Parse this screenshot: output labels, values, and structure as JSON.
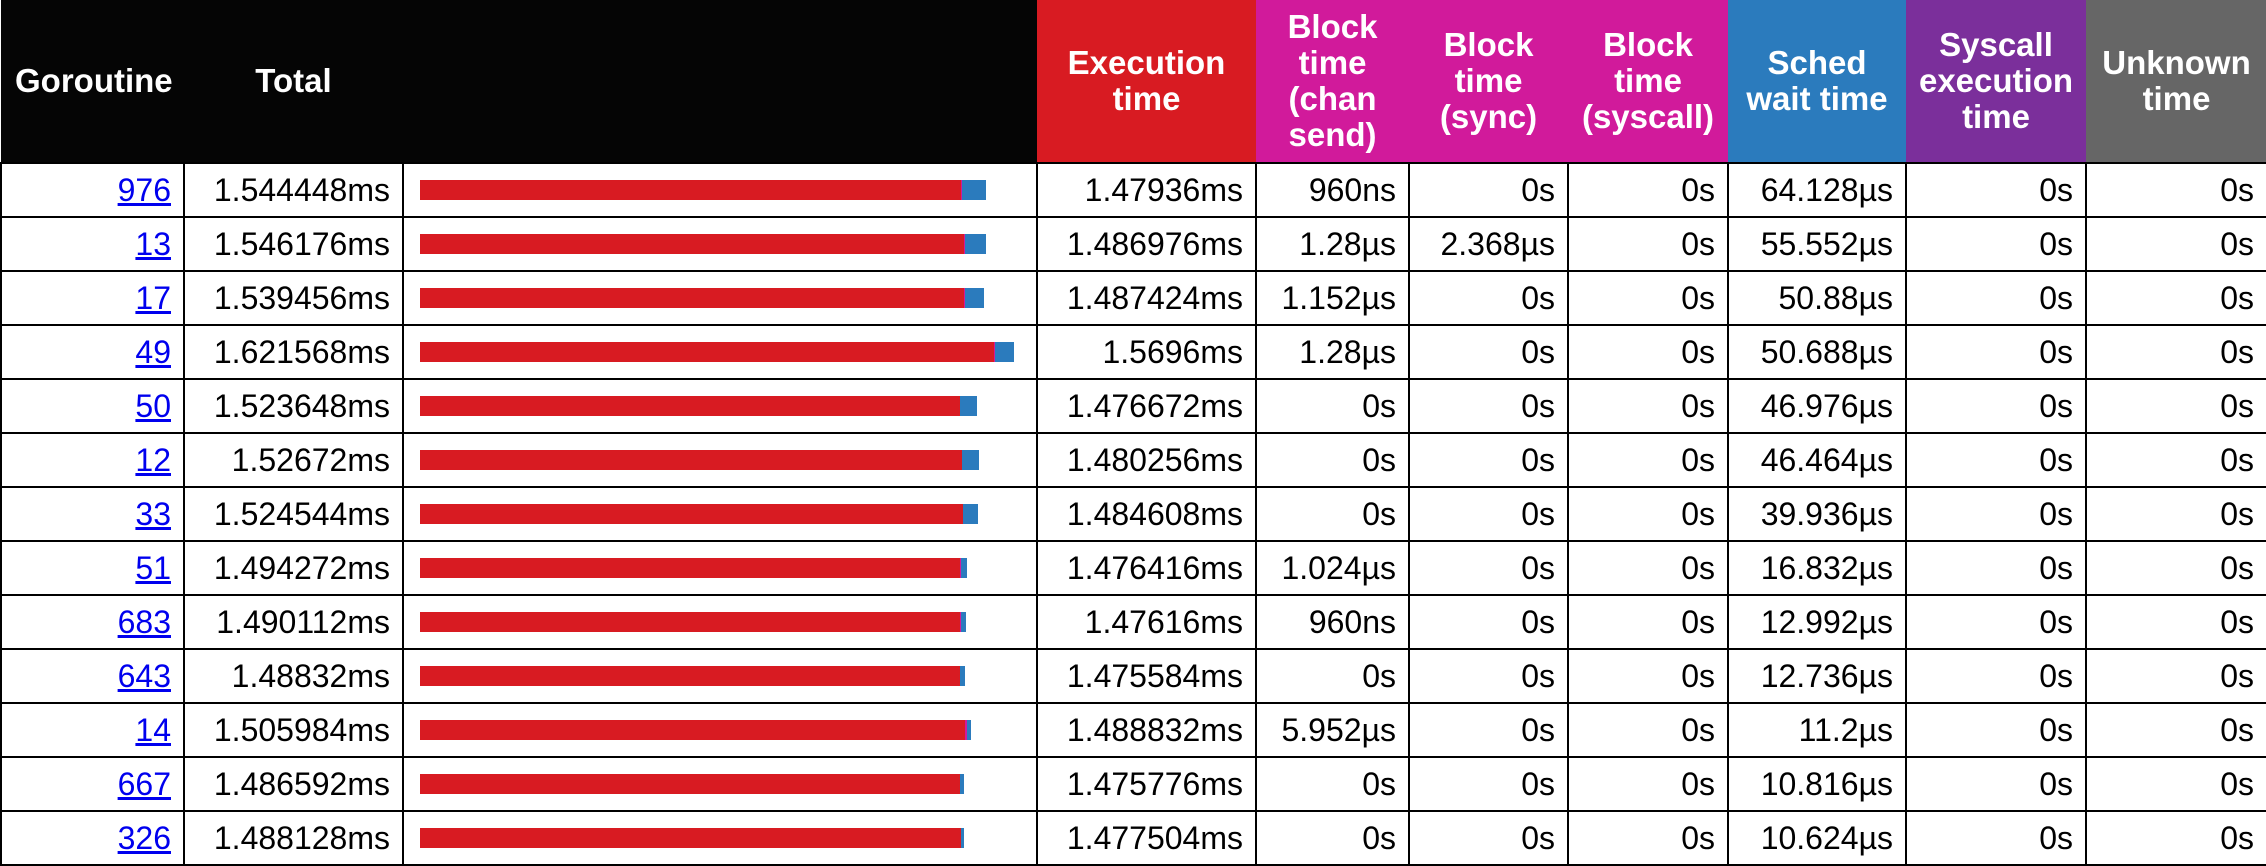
{
  "headers": {
    "goroutine": "Goroutine",
    "total": "Total",
    "execution": "Execution time",
    "block_chan_send": "Block time (chan send)",
    "block_sync": "Block time (sync)",
    "block_syscall": "Block time (syscall)",
    "sched_wait": "Sched wait time",
    "syscall_exec": "Syscall execution time",
    "unknown": "Unknown time"
  },
  "colors": {
    "header_bg": "#050505",
    "execution": "#d81b22",
    "block": "#d11a9b",
    "sched_wait": "#2b7bbd",
    "syscall_exec": "#7b2f9b",
    "unknown": "#666666",
    "link": "#0000ee"
  },
  "bar_scale_max_ms": 1.64,
  "rows": [
    {
      "id": "976",
      "total": "1.544448ms",
      "exec": "1.47936ms",
      "chan": "960ns",
      "sync": "0s",
      "syscall": "0s",
      "sched": "64.128µs",
      "sysexec": "0s",
      "unknown": "0s",
      "bar": {
        "exec_ms": 1.47936,
        "block_ms": 0.00096,
        "sched_ms": 0.064128
      }
    },
    {
      "id": "13",
      "total": "1.546176ms",
      "exec": "1.486976ms",
      "chan": "1.28µs",
      "sync": "2.368µs",
      "syscall": "0s",
      "sched": "55.552µs",
      "sysexec": "0s",
      "unknown": "0s",
      "bar": {
        "exec_ms": 1.486976,
        "block_ms": 0.003648,
        "sched_ms": 0.055552
      }
    },
    {
      "id": "17",
      "total": "1.539456ms",
      "exec": "1.487424ms",
      "chan": "1.152µs",
      "sync": "0s",
      "syscall": "0s",
      "sched": "50.88µs",
      "sysexec": "0s",
      "unknown": "0s",
      "bar": {
        "exec_ms": 1.487424,
        "block_ms": 0.001152,
        "sched_ms": 0.05088
      }
    },
    {
      "id": "49",
      "total": "1.621568ms",
      "exec": "1.5696ms",
      "chan": "1.28µs",
      "sync": "0s",
      "syscall": "0s",
      "sched": "50.688µs",
      "sysexec": "0s",
      "unknown": "0s",
      "bar": {
        "exec_ms": 1.5696,
        "block_ms": 0.00128,
        "sched_ms": 0.050688
      }
    },
    {
      "id": "50",
      "total": "1.523648ms",
      "exec": "1.476672ms",
      "chan": "0s",
      "sync": "0s",
      "syscall": "0s",
      "sched": "46.976µs",
      "sysexec": "0s",
      "unknown": "0s",
      "bar": {
        "exec_ms": 1.476672,
        "block_ms": 0,
        "sched_ms": 0.046976
      }
    },
    {
      "id": "12",
      "total": "1.52672ms",
      "exec": "1.480256ms",
      "chan": "0s",
      "sync": "0s",
      "syscall": "0s",
      "sched": "46.464µs",
      "sysexec": "0s",
      "unknown": "0s",
      "bar": {
        "exec_ms": 1.480256,
        "block_ms": 0,
        "sched_ms": 0.046464
      }
    },
    {
      "id": "33",
      "total": "1.524544ms",
      "exec": "1.484608ms",
      "chan": "0s",
      "sync": "0s",
      "syscall": "0s",
      "sched": "39.936µs",
      "sysexec": "0s",
      "unknown": "0s",
      "bar": {
        "exec_ms": 1.484608,
        "block_ms": 0,
        "sched_ms": 0.039936
      }
    },
    {
      "id": "51",
      "total": "1.494272ms",
      "exec": "1.476416ms",
      "chan": "1.024µs",
      "sync": "0s",
      "syscall": "0s",
      "sched": "16.832µs",
      "sysexec": "0s",
      "unknown": "0s",
      "bar": {
        "exec_ms": 1.476416,
        "block_ms": 0.001024,
        "sched_ms": 0.016832
      }
    },
    {
      "id": "683",
      "total": "1.490112ms",
      "exec": "1.47616ms",
      "chan": "960ns",
      "sync": "0s",
      "syscall": "0s",
      "sched": "12.992µs",
      "sysexec": "0s",
      "unknown": "0s",
      "bar": {
        "exec_ms": 1.47616,
        "block_ms": 0.00096,
        "sched_ms": 0.012992
      }
    },
    {
      "id": "643",
      "total": "1.48832ms",
      "exec": "1.475584ms",
      "chan": "0s",
      "sync": "0s",
      "syscall": "0s",
      "sched": "12.736µs",
      "sysexec": "0s",
      "unknown": "0s",
      "bar": {
        "exec_ms": 1.475584,
        "block_ms": 0,
        "sched_ms": 0.012736
      }
    },
    {
      "id": "14",
      "total": "1.505984ms",
      "exec": "1.488832ms",
      "chan": "5.952µs",
      "sync": "0s",
      "syscall": "0s",
      "sched": "11.2µs",
      "sysexec": "0s",
      "unknown": "0s",
      "bar": {
        "exec_ms": 1.488832,
        "block_ms": 0.005952,
        "sched_ms": 0.0112
      }
    },
    {
      "id": "667",
      "total": "1.486592ms",
      "exec": "1.475776ms",
      "chan": "0s",
      "sync": "0s",
      "syscall": "0s",
      "sched": "10.816µs",
      "sysexec": "0s",
      "unknown": "0s",
      "bar": {
        "exec_ms": 1.475776,
        "block_ms": 0,
        "sched_ms": 0.010816
      }
    },
    {
      "id": "326",
      "total": "1.488128ms",
      "exec": "1.477504ms",
      "chan": "0s",
      "sync": "0s",
      "syscall": "0s",
      "sched": "10.624µs",
      "sysexec": "0s",
      "unknown": "0s",
      "bar": {
        "exec_ms": 1.477504,
        "block_ms": 0,
        "sched_ms": 0.010624
      }
    }
  ]
}
